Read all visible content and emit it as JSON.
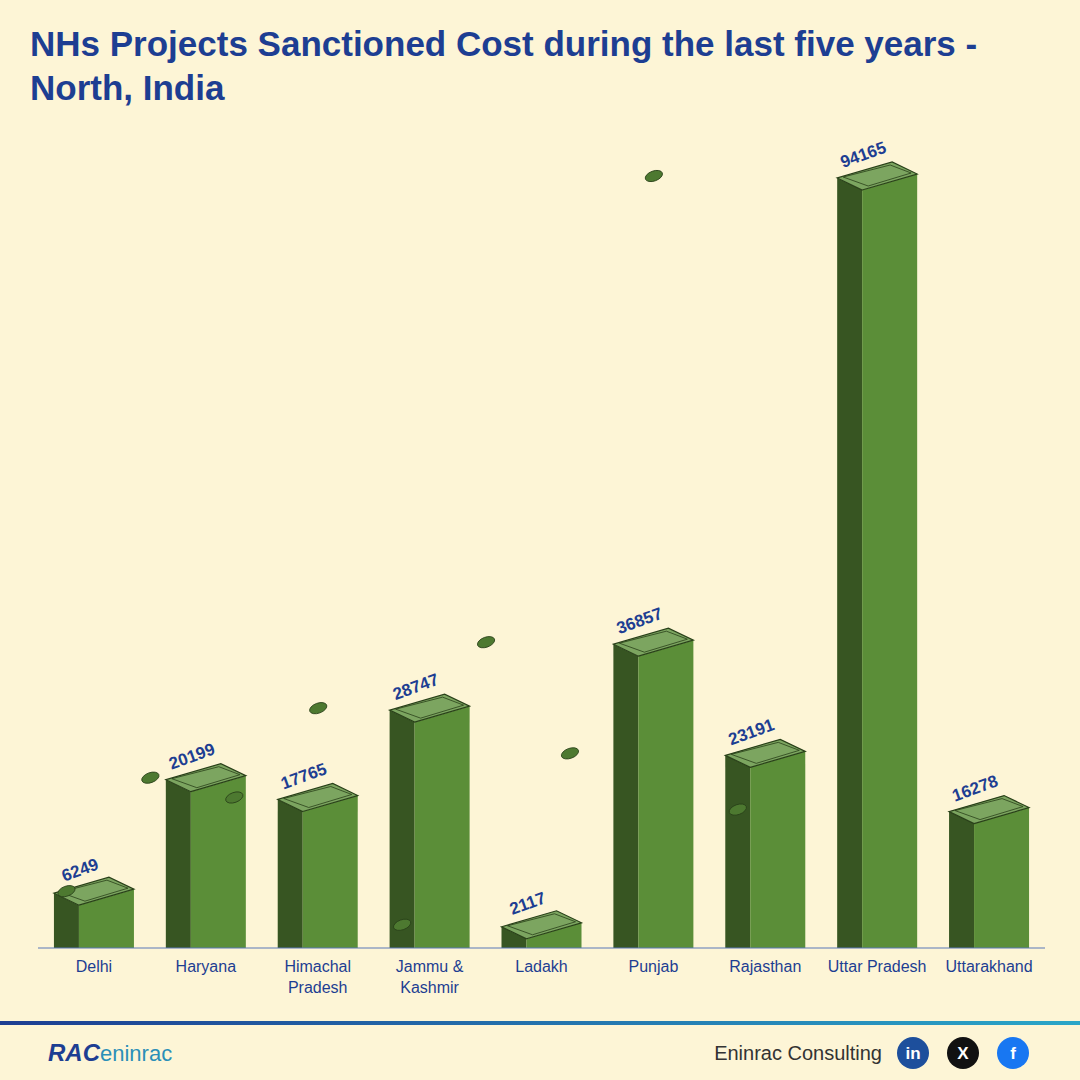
{
  "chart_data": {
    "type": "bar",
    "title": "NHs Projects Sanctioned Cost during the last five years - North, India",
    "categories": [
      "Delhi",
      "Haryana",
      "Himachal Pradesh",
      "Jammu & Kashmir",
      "Ladakh",
      "Punjab",
      "Rajasthan",
      "Uttar Pradesh",
      "Uttarakhand"
    ],
    "values": [
      6249,
      20199,
      17765,
      28747,
      2117,
      36857,
      23191,
      94165,
      16278
    ],
    "color": "#5b8e38",
    "ylim": [
      0,
      94165
    ],
    "data_labels": true,
    "tick_labels": "x"
  },
  "footer": {
    "logo": [
      "RAC",
      "eninrac"
    ],
    "company": "Eninrac Consulting",
    "social": [
      "in",
      "X",
      "f"
    ]
  }
}
